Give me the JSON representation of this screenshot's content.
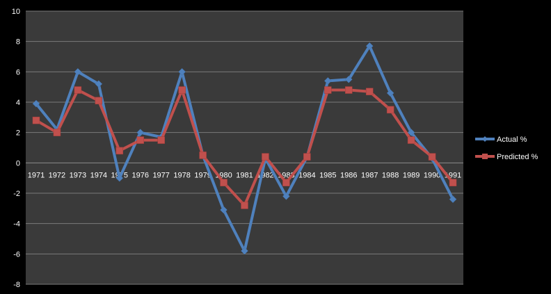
{
  "chart_data": {
    "type": "line",
    "title": "",
    "xlabel": "",
    "ylabel": "",
    "categories": [
      "1971",
      "1972",
      "1973",
      "1974",
      "1975",
      "1976",
      "1977",
      "1978",
      "1979",
      "1980",
      "1981",
      "1982",
      "1983",
      "1984",
      "1985",
      "1986",
      "1987",
      "1988",
      "1989",
      "1990",
      "1991"
    ],
    "ylim": [
      -8,
      10
    ],
    "yticks": [
      -8,
      -6,
      -4,
      -2,
      0,
      2,
      4,
      6,
      8,
      10
    ],
    "grid": true,
    "legend_position": "right",
    "series": [
      {
        "name": "Actual %",
        "color": "#4f81bd",
        "marker": "diamond",
        "values": [
          3.9,
          2.2,
          6.0,
          5.2,
          -1.0,
          2.0,
          1.7,
          6.0,
          0.5,
          -3.1,
          -5.8,
          0.3,
          -2.2,
          0.4,
          5.4,
          5.5,
          7.7,
          4.6,
          2.0,
          0.3,
          -2.4
        ]
      },
      {
        "name": "Predicted %",
        "color": "#c0504d",
        "marker": "square",
        "values": [
          2.8,
          2.0,
          4.8,
          4.1,
          0.8,
          1.5,
          1.5,
          4.8,
          0.5,
          -1.3,
          -2.8,
          0.4,
          -1.3,
          0.4,
          4.8,
          4.8,
          4.7,
          3.5,
          1.5,
          0.4,
          -1.3
        ]
      }
    ]
  }
}
